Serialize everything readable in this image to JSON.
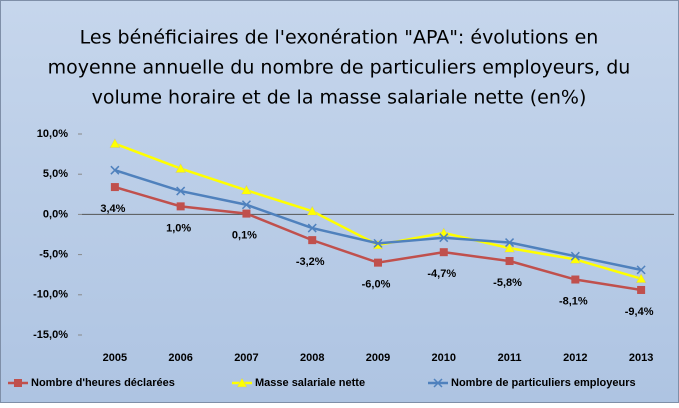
{
  "chart_data": {
    "type": "line",
    "title": [
      "Les bénéficiaires de l'exonération \"APA\": évolutions en",
      "moyenne annuelle du nombre de particuliers employeurs, du",
      "volume horaire et de la masse salariale nette (en%)"
    ],
    "categories": [
      "2005",
      "2006",
      "2007",
      "2008",
      "2009",
      "2010",
      "2011",
      "2012",
      "2013"
    ],
    "series": [
      {
        "name": "Nombre d'heures déclarées",
        "color": "#c0504d",
        "marker": "square",
        "values": [
          3.4,
          1.0,
          0.1,
          -3.2,
          -6.0,
          -4.7,
          -5.8,
          -8.1,
          -9.4
        ],
        "value_labels": [
          "3,4%",
          "1,0%",
          "0,1%",
          "-3,2%",
          "-6,0%",
          "-4,7%",
          "-5,8%",
          "-8,1%",
          "-9,4%"
        ]
      },
      {
        "name": "Masse salariale nette",
        "color": "#ffff00",
        "marker": "triangle",
        "values": [
          8.8,
          5.7,
          3.0,
          0.4,
          -3.8,
          -2.3,
          -4.2,
          -5.6,
          -8.0
        ]
      },
      {
        "name": "Nombre de particuliers employeurs",
        "color": "#4f81bd",
        "marker": "x",
        "values": [
          5.5,
          2.9,
          1.2,
          -1.7,
          -3.6,
          -2.9,
          -3.5,
          -5.2,
          -6.9
        ]
      }
    ],
    "ylim": [
      -15,
      10
    ],
    "yticks": [
      {
        "value": -15,
        "label": "-15,0%"
      },
      {
        "value": -10,
        "label": "-10,0%"
      },
      {
        "value": -5,
        "label": "-5,0%"
      },
      {
        "value": 0,
        "label": "0,0%"
      },
      {
        "value": 5,
        "label": "5,0%"
      },
      {
        "value": 10,
        "label": "10,0%"
      }
    ],
    "legend": "bottom"
  }
}
